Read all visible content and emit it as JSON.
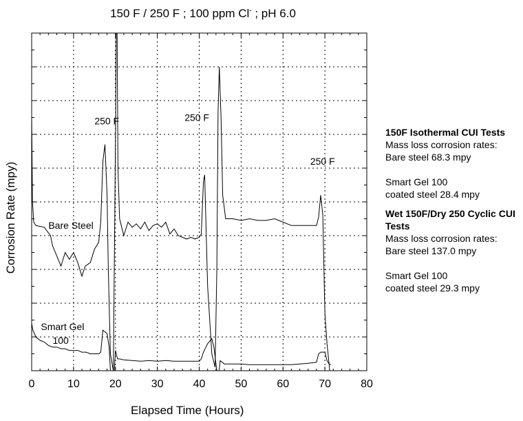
{
  "title": {
    "main": "150 F / 250 F ; 100 ppm Cl",
    "superscript": "-",
    "suffix": " ; pH 6.0"
  },
  "notes": {
    "iso_heading": "150F Isothermal CUI Tests",
    "iso_rates": "Mass loss corrosion rates:",
    "iso_bare": "Bare steel 68.3 mpy",
    "iso_gel_1": "Smart Gel 100",
    "iso_gel_2": "coated steel 28.4 mpy",
    "cyc_heading": "Wet 150F/Dry 250 Cyclic CUI Tests",
    "cyc_rates": "Mass loss corrosion rates:",
    "cyc_bare": "Bare steel 137.0 mpy",
    "cyc_gel_1": "Smart Gel 100",
    "cyc_gel_2": "coated steel 29.3 mpy"
  },
  "chart_data": {
    "type": "line",
    "title": "150 F / 250 F ; 100 ppm Cl- ; pH 6.0",
    "xlabel": "Elapsed Time (Hours)",
    "ylabel": "Corrosion Rate (mpy)",
    "xlim": [
      0,
      80
    ],
    "ylim": [
      0,
      10
    ],
    "x_ticks": [
      0,
      10,
      20,
      30,
      40,
      50,
      60,
      70,
      80
    ],
    "y_tick_labels_shown": false,
    "grid": true,
    "annotations": [
      {
        "text": "250 F",
        "x": 15,
        "y": 7.3
      },
      {
        "text": "250 F",
        "x": 36.5,
        "y": 7.4
      },
      {
        "text": "250 F",
        "x": 66.5,
        "y": 6.1
      },
      {
        "text": "Bare Steel",
        "x": 4,
        "y": 4.2
      },
      {
        "text": "Smart Gel",
        "x": 2.2,
        "y": 1.2
      },
      {
        "text": "100",
        "x": 5,
        "y": 0.8
      }
    ],
    "series": [
      {
        "name": "Bare Steel",
        "x": [
          0,
          0.2,
          0.5,
          1,
          3,
          4.5,
          5,
          6,
          7,
          8,
          9,
          10,
          11,
          12,
          12.8,
          14,
          15,
          16,
          16.5,
          17,
          17.5,
          18,
          18.3,
          18.8,
          19.5,
          20,
          20.3,
          20.6,
          21,
          22,
          23,
          24,
          25,
          26,
          27,
          28,
          29,
          30,
          31,
          32,
          33,
          34,
          35,
          36,
          37,
          38,
          39,
          40,
          40.5,
          41,
          41.3,
          42,
          43,
          43.8,
          44.2,
          44.5,
          44.8,
          45.2,
          45.6,
          46.3,
          47,
          47.5,
          48,
          50,
          52,
          54,
          56,
          58,
          60,
          62,
          64,
          66,
          67,
          68,
          68.5,
          69,
          69.5,
          70,
          70.5,
          71,
          71.5
        ],
        "y": [
          7.6,
          5.0,
          4.4,
          4.3,
          4.25,
          4.0,
          3.7,
          3.4,
          3.1,
          3.5,
          3.3,
          3.5,
          3.2,
          2.8,
          3.1,
          3.2,
          3.6,
          3.8,
          4.4,
          6.2,
          6.7,
          5.2,
          3.0,
          0.5,
          0,
          6.9,
          12.0,
          6.0,
          4.5,
          4.0,
          4.4,
          4.25,
          4.35,
          4.2,
          4.4,
          4.15,
          4.3,
          4.35,
          4.25,
          4.4,
          4.05,
          4.2,
          4.0,
          3.95,
          3.9,
          3.95,
          3.9,
          3.95,
          4.05,
          5.6,
          5.8,
          2.5,
          0.5,
          0.1,
          3.0,
          7.7,
          9.0,
          7.5,
          5.2,
          4.5,
          4.5,
          4.5,
          4.5,
          4.45,
          4.5,
          4.45,
          4.45,
          4.5,
          4.4,
          4.3,
          4.3,
          4.3,
          4.3,
          4.3,
          4.55,
          5.2,
          4.6,
          1.7,
          0.8,
          0.2,
          -0.5
        ]
      },
      {
        "name": "Smart Gel 100",
        "x": [
          0,
          0.3,
          1,
          2,
          3,
          4,
          5,
          6,
          7,
          8,
          9,
          10,
          11,
          12,
          13,
          14,
          15,
          16,
          16.5,
          17,
          18,
          18.5,
          19,
          19.5,
          20,
          20.5,
          21,
          22,
          24,
          26,
          28,
          30,
          32,
          34,
          36,
          38,
          40,
          40.5,
          41,
          42,
          43,
          43.5,
          44,
          44.5,
          45,
          45.5,
          46,
          48,
          50,
          52,
          54,
          56,
          58,
          60,
          62,
          64,
          66,
          68,
          68.5,
          69,
          70,
          70.5,
          71,
          71.5
        ],
        "y": [
          1.4,
          1.2,
          1.0,
          0.9,
          0.85,
          0.75,
          0.7,
          0.7,
          0.65,
          0.65,
          0.6,
          0.6,
          0.6,
          0.55,
          0.55,
          0.5,
          0.5,
          0.5,
          0.55,
          1.2,
          1.1,
          0.7,
          -0.5,
          -0.5,
          0.6,
          0.35,
          0.35,
          0.32,
          0.3,
          0.28,
          0.3,
          0.28,
          0.3,
          0.28,
          0.28,
          0.28,
          0.28,
          0.35,
          0.55,
          0.8,
          0.95,
          0.7,
          0.2,
          -0.3,
          0.3,
          0.25,
          0.2,
          0.2,
          0.2,
          0.18,
          0.18,
          0.18,
          0.18,
          0.18,
          0.18,
          0.2,
          0.22,
          0.25,
          0.5,
          0.55,
          0.55,
          0.3,
          0.2,
          0.18
        ]
      }
    ]
  }
}
